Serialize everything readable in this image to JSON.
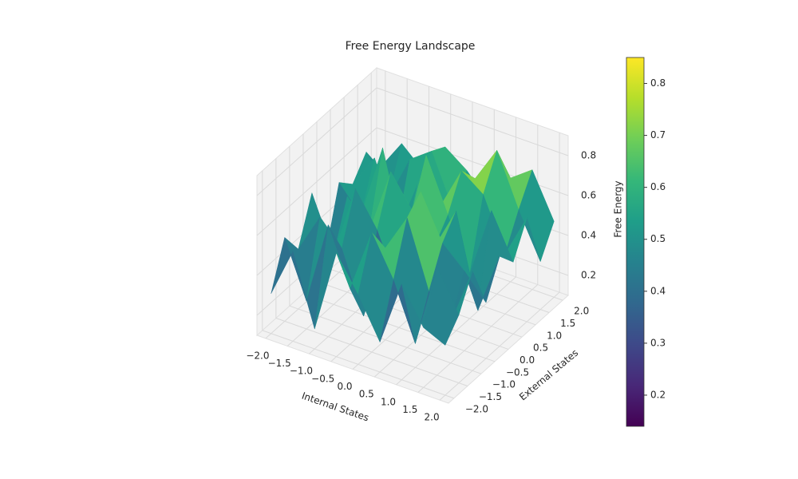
{
  "chart_data": {
    "type": "surface",
    "title": "Free Energy Landscape",
    "x_label": "Internal States",
    "y_label": "External States",
    "z_label": "Free Energy",
    "colormap": "viridis",
    "x": [
      -2,
      -1.5,
      -1,
      -0.5,
      0,
      0.5,
      1,
      1.5,
      2
    ],
    "y": [
      -2,
      -1.5,
      -1,
      -0.5,
      0,
      0.5,
      1,
      1.5,
      2
    ],
    "z": [
      [
        0.3,
        0.55,
        0.2,
        0.62,
        0.45,
        0.25,
        0.58,
        0.4,
        0.35
      ],
      [
        0.52,
        0.24,
        0.66,
        0.38,
        0.7,
        0.5,
        0.22,
        0.64,
        0.44
      ],
      [
        0.4,
        0.6,
        0.48,
        0.18,
        0.56,
        0.75,
        0.42,
        0.3,
        0.6
      ],
      [
        0.62,
        0.35,
        0.72,
        0.55,
        0.28,
        0.82,
        0.6,
        0.5,
        0.38
      ],
      [
        0.25,
        0.58,
        0.44,
        0.78,
        0.62,
        0.48,
        0.7,
        0.24,
        0.55
      ],
      [
        0.55,
        0.42,
        0.8,
        0.36,
        0.84,
        0.58,
        0.32,
        0.68,
        0.46
      ],
      [
        0.48,
        0.65,
        0.3,
        0.6,
        0.52,
        0.74,
        0.66,
        0.4,
        0.62
      ],
      [
        0.58,
        0.38,
        0.62,
        0.7,
        0.44,
        0.64,
        0.82,
        0.56,
        0.34
      ],
      [
        0.44,
        0.6,
        0.5,
        0.66,
        0.58,
        0.46,
        0.62,
        0.7,
        0.48
      ]
    ],
    "xlim": [
      -2.2,
      2.2
    ],
    "ylim": [
      -2.2,
      2.2
    ],
    "zlim": [
      0.1,
      0.9
    ],
    "xticks": [
      {
        "value": -2,
        "label": "−2.0"
      },
      {
        "value": -1.5,
        "label": "−1.5"
      },
      {
        "value": -1,
        "label": "−1.0"
      },
      {
        "value": -0.5,
        "label": "−0.5"
      },
      {
        "value": 0,
        "label": "0.0"
      },
      {
        "value": 0.5,
        "label": "0.5"
      },
      {
        "value": 1,
        "label": "1.0"
      },
      {
        "value": 1.5,
        "label": "1.5"
      },
      {
        "value": 2,
        "label": "2.0"
      }
    ],
    "yticks": [
      {
        "value": -2,
        "label": "−2.0"
      },
      {
        "value": -1.5,
        "label": "−1.5"
      },
      {
        "value": -1,
        "label": "−1.0"
      },
      {
        "value": -0.5,
        "label": "−0.5"
      },
      {
        "value": 0,
        "label": "0.0"
      },
      {
        "value": 0.5,
        "label": "0.5"
      },
      {
        "value": 1,
        "label": "1.0"
      },
      {
        "value": 1.5,
        "label": "1.5"
      },
      {
        "value": 2,
        "label": "2.0"
      }
    ],
    "zticks": [
      0.2,
      0.4,
      0.6,
      0.8
    ],
    "clim": [
      0.14,
      0.85
    ],
    "cticks": [
      0.2,
      0.3,
      0.4,
      0.5,
      0.6,
      0.7,
      0.8
    ]
  }
}
